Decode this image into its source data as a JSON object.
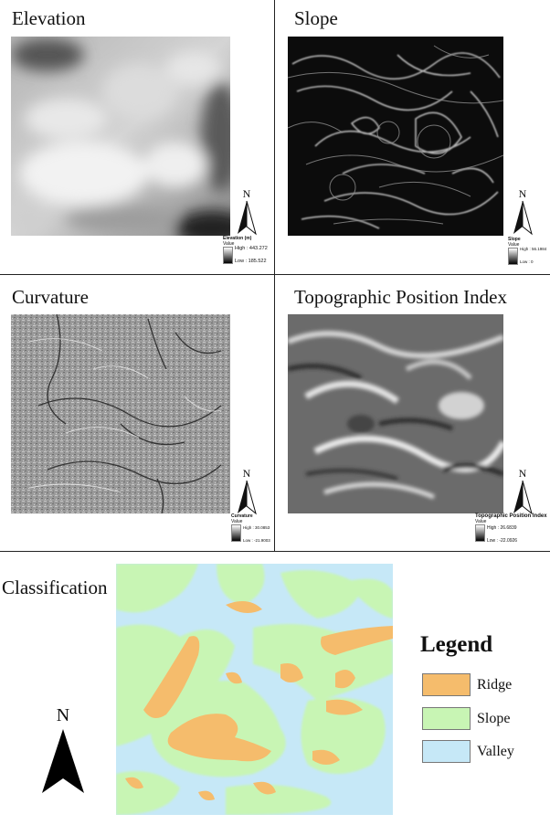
{
  "panels": {
    "elevation": {
      "title": "Elevation",
      "legend_title": "Elevation (m)",
      "legend_value": "Value",
      "high": "High : 443.272",
      "low": "Low : 185.522"
    },
    "slope": {
      "title": "Slope",
      "legend_title": "Slope",
      "legend_value": "Value",
      "high": "High : 56.1984",
      "low": "Low : 0"
    },
    "curvature": {
      "title": "Curvature",
      "legend_title": "Curvature",
      "legend_value": "Value",
      "high": "High : 30.0853",
      "low": "Low : -21.9003"
    },
    "tpi": {
      "title": "Topographic Position Index",
      "legend_title": "Topographic Position Index",
      "legend_value": "Value",
      "high": "High : 26.6839",
      "low": "Low : -22.0926"
    },
    "classification": {
      "title": "Classification"
    }
  },
  "north_label": "N",
  "legend": {
    "title": "Legend",
    "items": [
      {
        "label": "Ridge",
        "color": "#f5bc6c"
      },
      {
        "label": "Slope",
        "color": "#c8f5b4"
      },
      {
        "label": "Valley",
        "color": "#c6e8f7"
      }
    ]
  },
  "colors": {
    "ridge": "#f5bc6c",
    "slope": "#c8f5b4",
    "valley": "#c6e8f7"
  }
}
